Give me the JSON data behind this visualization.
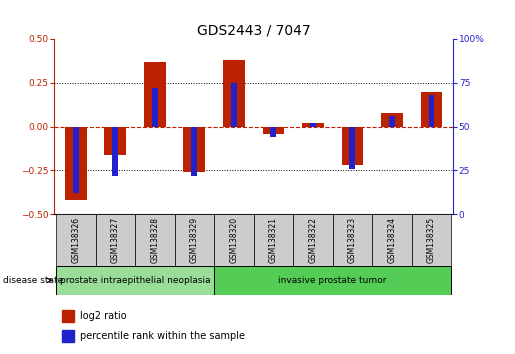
{
  "title": "GDS2443 / 7047",
  "samples": [
    "GSM138326",
    "GSM138327",
    "GSM138328",
    "GSM138329",
    "GSM138320",
    "GSM138321",
    "GSM138322",
    "GSM138323",
    "GSM138324",
    "GSM138325"
  ],
  "log2_ratio": [
    -0.42,
    -0.16,
    0.37,
    -0.26,
    0.38,
    -0.04,
    0.02,
    -0.22,
    0.08,
    0.2
  ],
  "percentile_rank": [
    12,
    22,
    72,
    22,
    75,
    44,
    52,
    26,
    56,
    68
  ],
  "ylim_left": [
    -0.5,
    0.5
  ],
  "ylim_right": [
    0,
    100
  ],
  "yticks_left": [
    -0.5,
    -0.25,
    0.0,
    0.25,
    0.5
  ],
  "yticks_right": [
    0,
    25,
    50,
    75,
    100
  ],
  "hlines_dotted": [
    -0.25,
    0.25
  ],
  "hline_dashed": 0.0,
  "bar_color_red": "#bb2200",
  "bar_color_blue": "#2222cc",
  "group1_label": "prostate intraepithelial neoplasia",
  "group2_label": "invasive prostate tumor",
  "group1_indices": [
    0,
    1,
    2,
    3
  ],
  "group2_indices": [
    4,
    5,
    6,
    7,
    8,
    9
  ],
  "group1_color": "#99dd99",
  "group2_color": "#55cc55",
  "sample_box_color": "#cccccc",
  "disease_state_label": "disease state",
  "legend1": "log2 ratio",
  "legend2": "percentile rank within the sample",
  "title_fontsize": 10,
  "tick_fontsize": 6.5,
  "sample_fontsize": 5.5,
  "group_fontsize": 6.5,
  "legend_fontsize": 7,
  "bar_width": 0.55,
  "blue_bar_width": 0.15,
  "background_color": "#ffffff"
}
